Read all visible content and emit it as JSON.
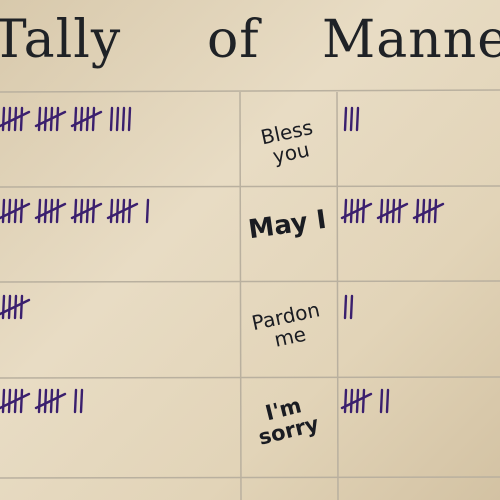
{
  "title": {
    "word1": "Tally",
    "word2": "of",
    "word3": "Manners"
  },
  "rows": [
    {
      "label_line1": "Bless",
      "label_line2": "you"
    },
    {
      "label_line1": "May I",
      "label_line2": ""
    },
    {
      "label_line1": "Pardon",
      "label_line2": "me"
    },
    {
      "label_line1": "I'm",
      "label_line2": "sorry"
    }
  ],
  "colors": {
    "paper": "#e6d9bf",
    "marker": "#3a1f6e",
    "ink": "#1a1c22",
    "gridline": "#b9b09f"
  },
  "tally_counts": {
    "left": [
      19,
      21,
      5,
      12
    ],
    "right": [
      3,
      15,
      2,
      7
    ]
  }
}
